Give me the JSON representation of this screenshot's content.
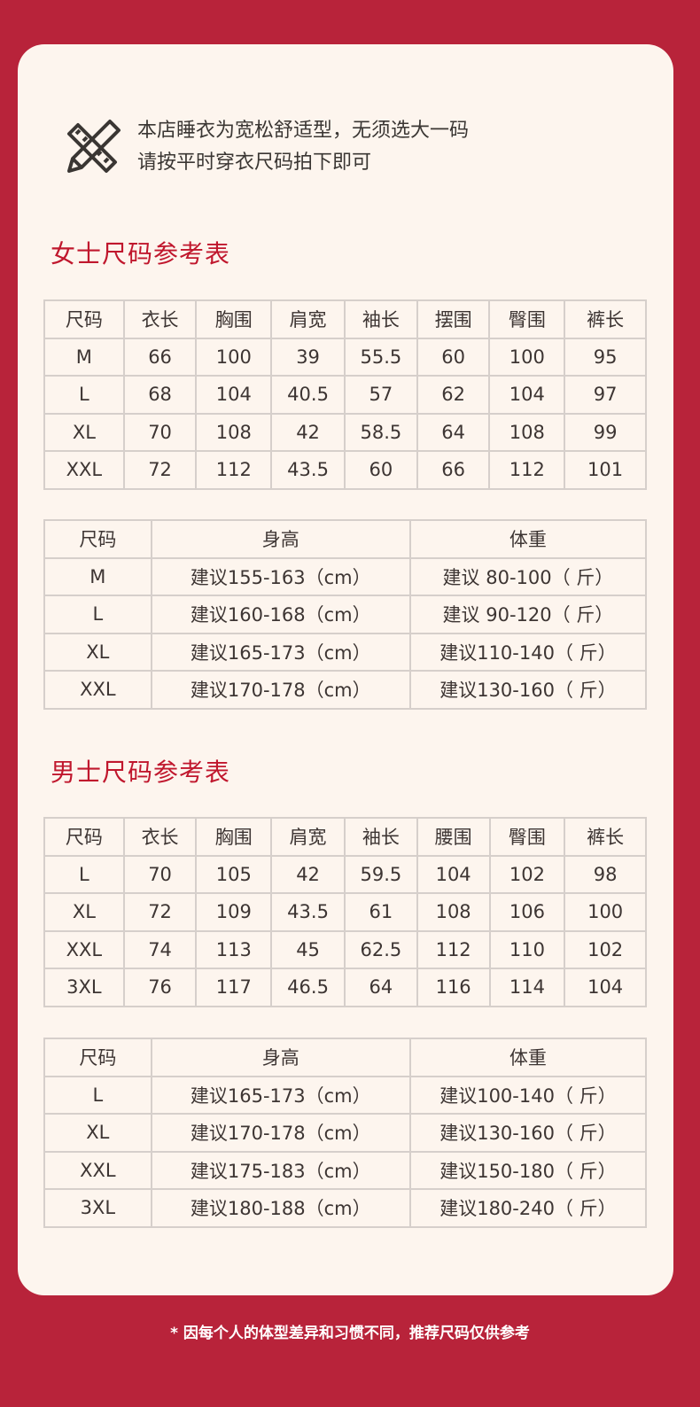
{
  "note": {
    "line1": "本店睡衣为宽松舒适型，无须选大一码",
    "line2": "请按平时穿衣尺码拍下即可"
  },
  "women": {
    "title": "女士尺码参考表",
    "headers": [
      "尺码",
      "衣长",
      "胸围",
      "肩宽",
      "袖长",
      "摆围",
      "臀围",
      "裤长"
    ],
    "rows": [
      [
        "M",
        "66",
        "100",
        "39",
        "55.5",
        "60",
        "100",
        "95"
      ],
      [
        "L",
        "68",
        "104",
        "40.5",
        "57",
        "62",
        "104",
        "97"
      ],
      [
        "XL",
        "70",
        "108",
        "42",
        "58.5",
        "64",
        "108",
        "99"
      ],
      [
        "XXL",
        "72",
        "112",
        "43.5",
        "60",
        "66",
        "112",
        "101"
      ]
    ],
    "rec_headers": [
      "尺码",
      "身高",
      "体重"
    ],
    "rec_rows": [
      [
        "M",
        "建议155-163（cm）",
        "建议  80-100（ 斤）"
      ],
      [
        "L",
        "建议160-168（cm）",
        "建议  90-120（ 斤）"
      ],
      [
        "XL",
        "建议165-173（cm）",
        "建议110-140（ 斤）"
      ],
      [
        "XXL",
        "建议170-178（cm）",
        "建议130-160（ 斤）"
      ]
    ]
  },
  "men": {
    "title": "男士尺码参考表",
    "headers": [
      "尺码",
      "衣长",
      "胸围",
      "肩宽",
      "袖长",
      "腰围",
      "臀围",
      "裤长"
    ],
    "rows": [
      [
        "L",
        "70",
        "105",
        "42",
        "59.5",
        "104",
        "102",
        "98"
      ],
      [
        "XL",
        "72",
        "109",
        "43.5",
        "61",
        "108",
        "106",
        "100"
      ],
      [
        "XXL",
        "74",
        "113",
        "45",
        "62.5",
        "112",
        "110",
        "102"
      ],
      [
        "3XL",
        "76",
        "117",
        "46.5",
        "64",
        "116",
        "114",
        "104"
      ]
    ],
    "rec_headers": [
      "尺码",
      "身高",
      "体重"
    ],
    "rec_rows": [
      [
        "L",
        "建议165-173（cm）",
        "建议100-140（ 斤）"
      ],
      [
        "XL",
        "建议170-178（cm）",
        "建议130-160（ 斤）"
      ],
      [
        "XXL",
        "建议175-183（cm）",
        "建议150-180（ 斤）"
      ],
      [
        "3XL",
        "建议180-188（cm）",
        "建议180-240（ 斤）"
      ]
    ]
  },
  "footer": "* 因每个人的体型差异和习惯不同，推荐尺码仅供参考",
  "colors": {
    "background": "#b8233a",
    "card": "#fdf5ee",
    "title": "#c0172d"
  }
}
